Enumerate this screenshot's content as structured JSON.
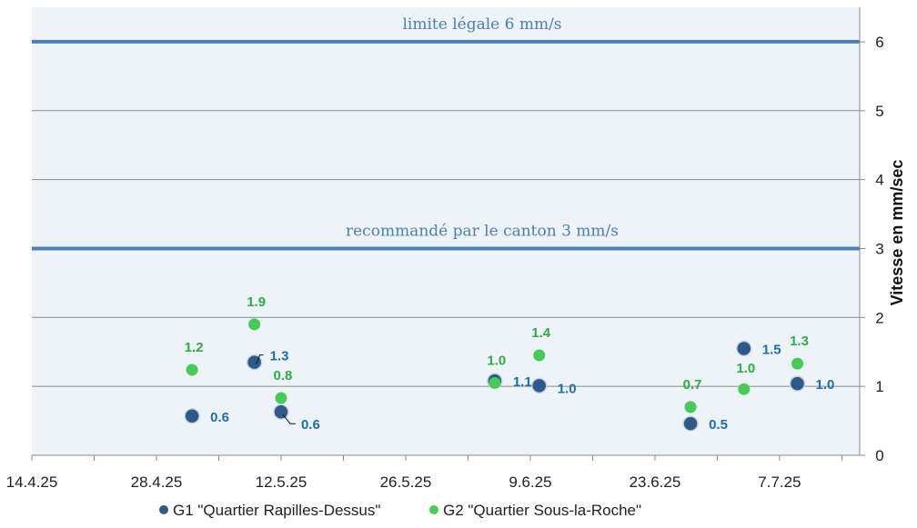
{
  "chart_data": {
    "type": "scatter",
    "ylabel": "Vitesse en mm/sec",
    "ylim": [
      0,
      6.5
    ],
    "yticks": [
      0,
      1,
      2,
      3,
      4,
      5,
      6
    ],
    "xlim": [
      "2025-04-14",
      "2025-07-16"
    ],
    "xticks": [
      {
        "date": "2025-04-14",
        "label": "14.4.25"
      },
      {
        "date": "2025-04-28",
        "label": "28.4.25"
      },
      {
        "date": "2025-05-12",
        "label": "12.5.25"
      },
      {
        "date": "2025-05-26",
        "label": "26.5.25"
      },
      {
        "date": "2025-06-09",
        "label": "9.6.25"
      },
      {
        "date": "2025-06-23",
        "label": "23.6.25"
      },
      {
        "date": "2025-07-07",
        "label": "7.7.25"
      }
    ],
    "grid": true,
    "legend_position": "bottom",
    "reference_lines": [
      {
        "y": 6,
        "label": "limite légale 6 mm/s",
        "color": "#4a7fb5"
      },
      {
        "y": 3,
        "label": "recommandé par le canton 3 mm/s",
        "color": "#4a7fb5"
      }
    ],
    "series": [
      {
        "name": "G1 \"Quartier Rapilles-Dessus\"",
        "color": "#2e5a8a",
        "label_color": "#1a6fb0",
        "points": [
          {
            "x": "2025-05-02",
            "y": 0.57,
            "label": "0.6"
          },
          {
            "x": "2025-05-09",
            "y": 1.35,
            "label": "1.3"
          },
          {
            "x": "2025-05-12",
            "y": 0.63,
            "label": "0.6"
          },
          {
            "x": "2025-06-05",
            "y": 1.08,
            "label": "1.1"
          },
          {
            "x": "2025-06-10",
            "y": 1.01,
            "label": "1.0"
          },
          {
            "x": "2025-06-27",
            "y": 0.46,
            "label": "0.5"
          },
          {
            "x": "2025-07-03",
            "y": 1.55,
            "label": "1.5"
          },
          {
            "x": "2025-07-09",
            "y": 1.04,
            "label": "1.0"
          }
        ]
      },
      {
        "name": "G2 \"Quartier Sous-la-Roche\"",
        "color": "#44cc55",
        "label_color": "#2ab040",
        "points": [
          {
            "x": "2025-05-02",
            "y": 1.24,
            "label": "1.2"
          },
          {
            "x": "2025-05-09",
            "y": 1.9,
            "label": "1.9"
          },
          {
            "x": "2025-05-12",
            "y": 0.83,
            "label": "0.8"
          },
          {
            "x": "2025-06-05",
            "y": 1.05,
            "label": "1.0"
          },
          {
            "x": "2025-06-10",
            "y": 1.45,
            "label": "1.4"
          },
          {
            "x": "2025-06-27",
            "y": 0.7,
            "label": "0.7"
          },
          {
            "x": "2025-07-03",
            "y": 0.96,
            "label": "1.0"
          },
          {
            "x": "2025-07-09",
            "y": 1.33,
            "label": "1.3"
          }
        ]
      }
    ]
  },
  "colors": {
    "plot_background": "#eef3f8",
    "grid": "#8a8a8a",
    "axis": "#888888"
  }
}
